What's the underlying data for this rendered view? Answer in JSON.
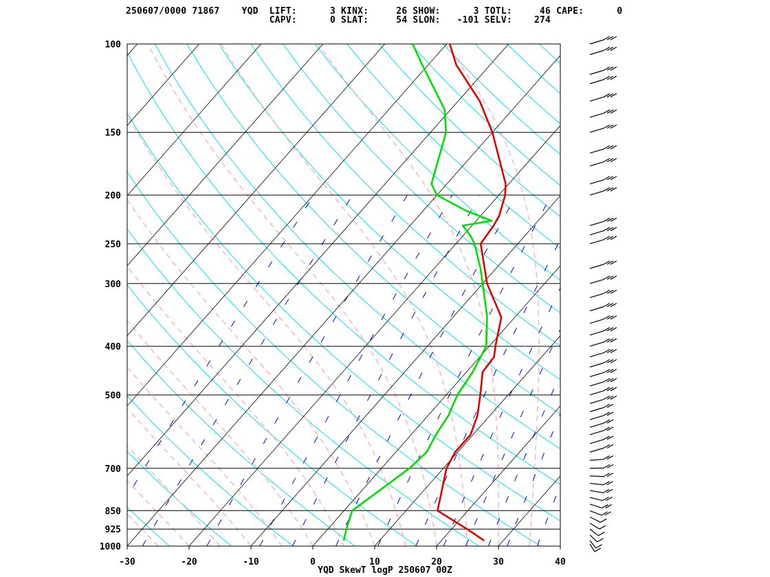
{
  "header": {
    "line1": "250607/0000 71867    YQD  LIFT:      3 KINX:     26 SHOW:      3 TOTL:     46 CAPE:      0",
    "line2": "                          CAPV:      0 SLAT:     54 SLON:   -101 SELV:    274"
  },
  "chart_data": {
    "type": "line",
    "title": "YQD SkewT logP 250607 00Z",
    "xlabel": "",
    "ylabel": "",
    "x_range": [
      -30,
      40
    ],
    "y_range": [
      1000,
      100
    ],
    "y_scale": "log",
    "skew": true,
    "x_ticks": [
      "-30",
      "-20",
      "-10",
      "0",
      "10",
      "20",
      "30",
      "40"
    ],
    "y_ticks": [
      "100",
      "150",
      "200",
      "250",
      "300",
      "400",
      "500",
      "700",
      "850",
      "925",
      "1000"
    ],
    "colors": {
      "temperature": "#e00000",
      "dewpoint": "#00e000",
      "dry_adiabat": "#00e5ee",
      "moist_adiabat": "#ffb6c1",
      "mixing_ratio": "#0000cd",
      "isotherm": "#000000",
      "isobar": "#000000"
    },
    "series": [
      {
        "key": "temperature",
        "points": [
          [
            975,
            26.9
          ],
          [
            925,
            22.5
          ],
          [
            850,
            15.1
          ],
          [
            700,
            10.5
          ],
          [
            650,
            9.6
          ],
          [
            600,
            9.6
          ],
          [
            550,
            8.0
          ],
          [
            500,
            5.5
          ],
          [
            450,
            2.6
          ],
          [
            420,
            2.3
          ],
          [
            400,
            1.0
          ],
          [
            350,
            -2.2
          ],
          [
            300,
            -9.3
          ],
          [
            250,
            -16.0
          ],
          [
            230,
            -16.5
          ],
          [
            220,
            -17.0
          ],
          [
            200,
            -19.0
          ],
          [
            190,
            -20.5
          ],
          [
            150,
            -30.0
          ],
          [
            130,
            -36.5
          ],
          [
            110,
            -45.5
          ],
          [
            100,
            -49.5
          ]
        ]
      },
      {
        "key": "dewpoint",
        "points": [
          [
            975,
            4.2
          ],
          [
            925,
            3.0
          ],
          [
            850,
            1.3
          ],
          [
            700,
            4.5
          ],
          [
            650,
            5.0
          ],
          [
            600,
            4.0
          ],
          [
            550,
            3.3
          ],
          [
            500,
            1.8
          ],
          [
            450,
            1.0
          ],
          [
            400,
            -0.5
          ],
          [
            350,
            -4.5
          ],
          [
            300,
            -10.0
          ],
          [
            280,
            -12.5
          ],
          [
            250,
            -17.0
          ],
          [
            240,
            -19.0
          ],
          [
            230,
            -21.5
          ],
          [
            225,
            -17.5
          ],
          [
            215,
            -23.0
          ],
          [
            200,
            -30.0
          ],
          [
            190,
            -32.5
          ],
          [
            150,
            -37.5
          ],
          [
            135,
            -41.0
          ],
          [
            110,
            -51.0
          ],
          [
            100,
            -55.5
          ]
        ]
      }
    ],
    "wind_barbs": true
  },
  "footer": {
    "title": "YQD SkewT logP 250607 00Z"
  }
}
